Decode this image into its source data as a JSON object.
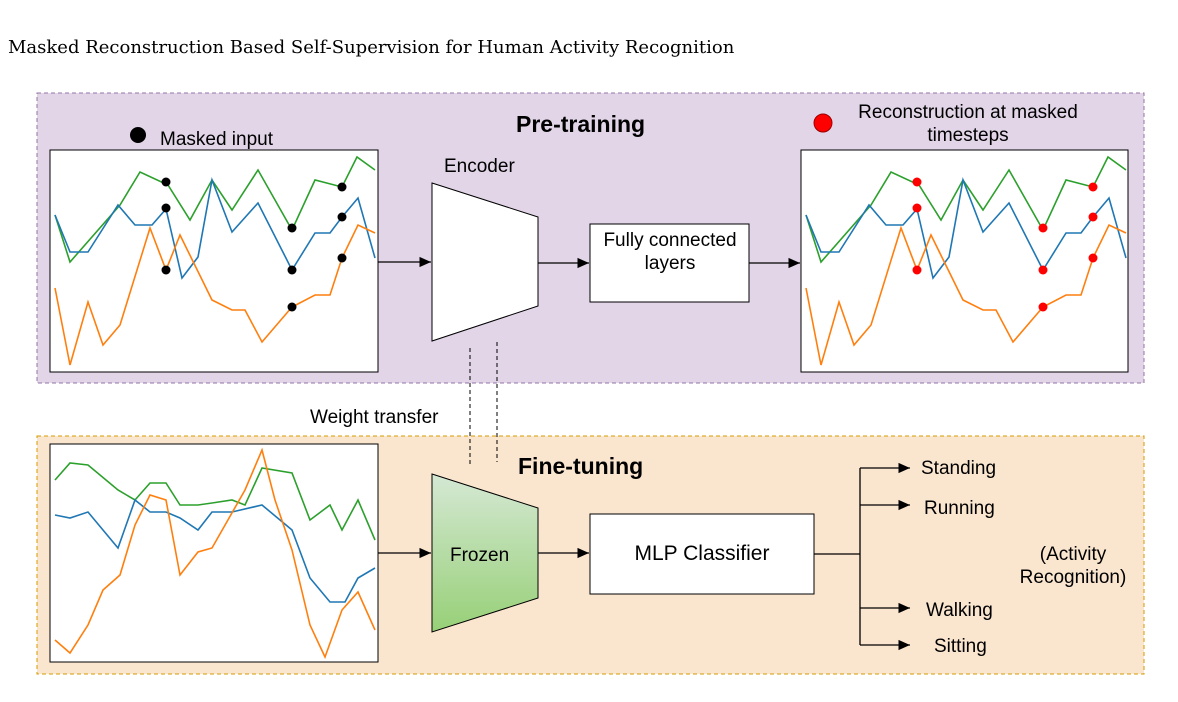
{
  "header": {
    "title": "Masked Reconstruction Based Self-Supervision for Human Activity Recognition"
  },
  "pretraining": {
    "title": "Pre-training",
    "masked_legend": "Masked input",
    "encoder": "Encoder",
    "fc": "Fully connected layers",
    "reconstruction_legend": "Reconstruction at masked timesteps"
  },
  "weight_transfer": "Weight transfer",
  "finetuning": {
    "title": "Fine-tuning",
    "frozen": "Frozen",
    "classifier": "MLP Classifier",
    "outputs": [
      "Standing",
      "Running",
      "Walking",
      "Sitting"
    ],
    "note": "(Activity Recognition)"
  }
}
